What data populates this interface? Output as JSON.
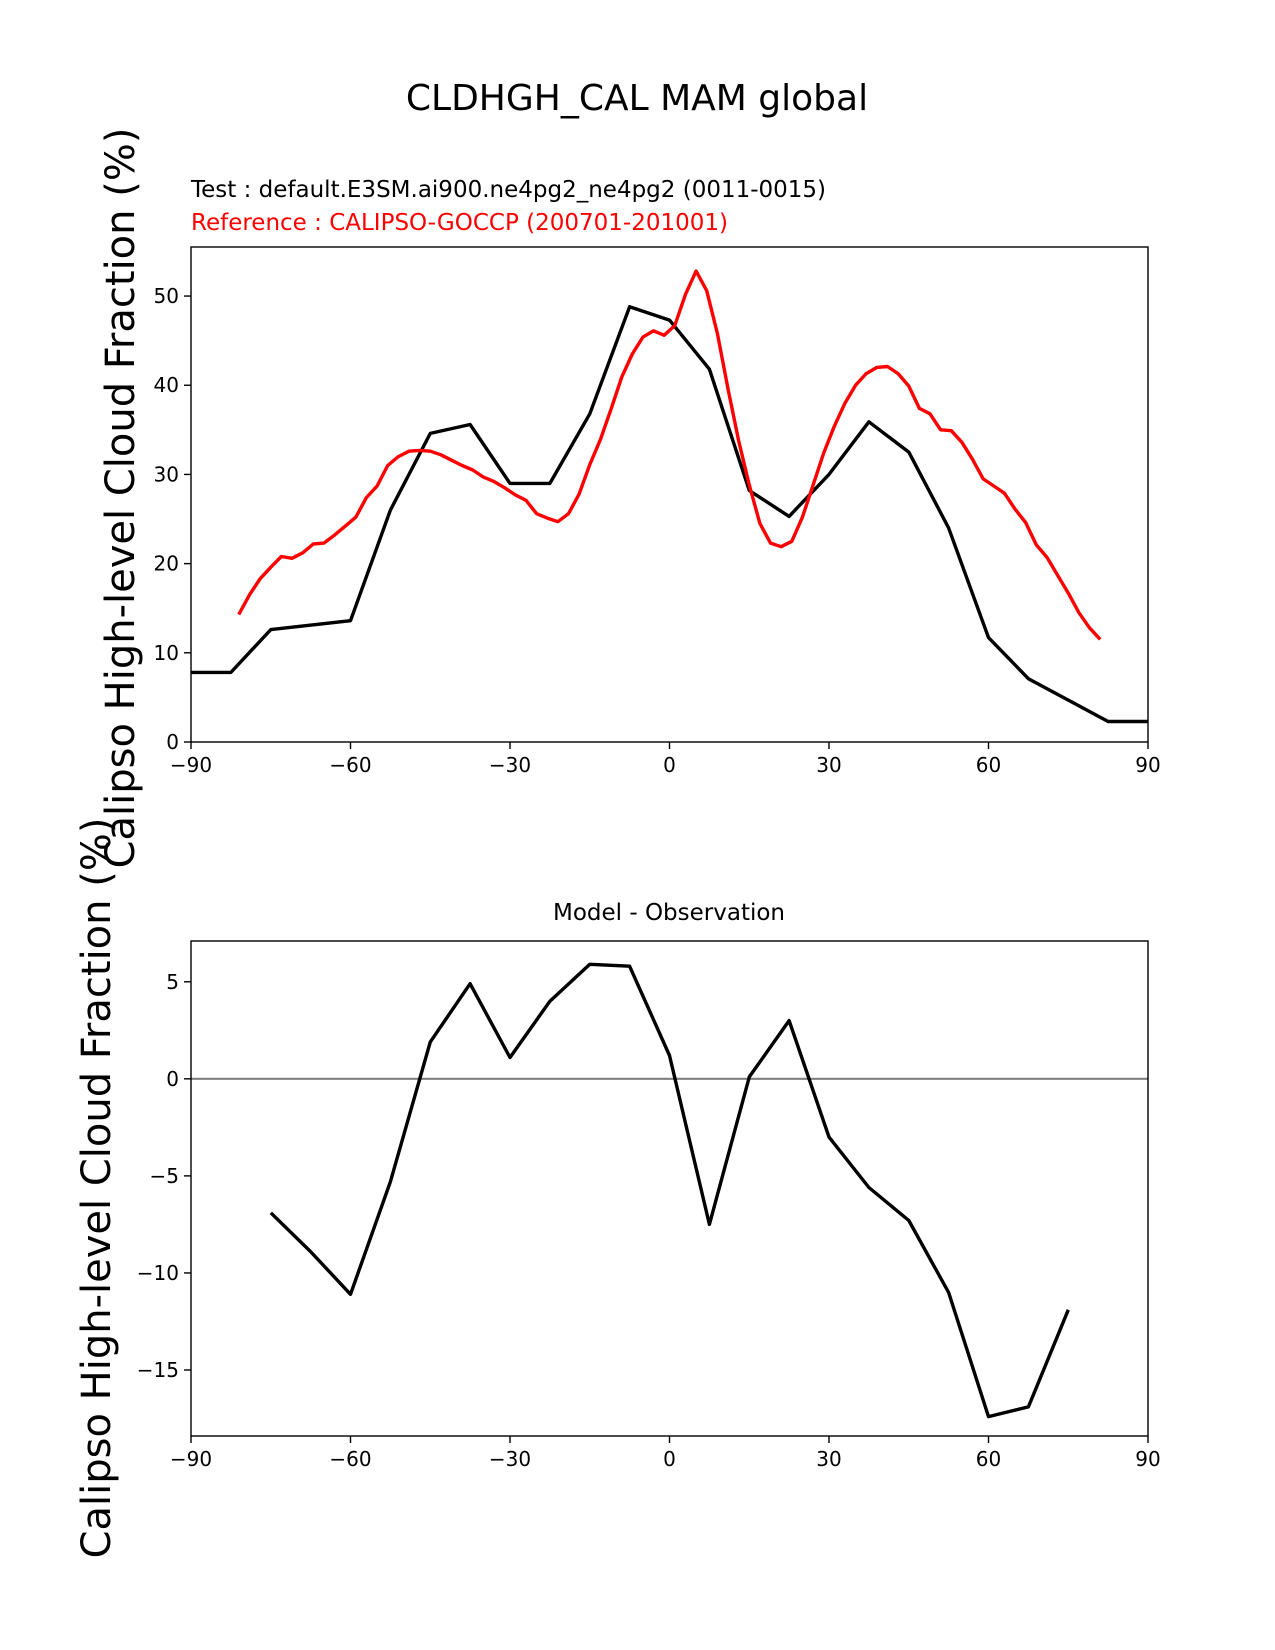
{
  "figure": {
    "title": "CLDHGH_CAL MAM global",
    "test_label": "Test : default.E3SM.ai900.ne4pg2_ne4pg2 (0011-0015)",
    "reference_label": "Reference : CALIPSO-GOCCP (200701-201001)",
    "diff_title": "Model - Observation",
    "ylabel_top": "Calipso High-level Cloud Fraction (%)",
    "ylabel_bottom": "Calipso High-level Cloud Fraction (%)"
  },
  "chart_data": [
    {
      "type": "line",
      "title": "",
      "xlabel": "",
      "ylabel": "Calipso High-level Cloud Fraction (%)",
      "xlim": [
        -90,
        90
      ],
      "ylim": [
        0,
        55.5
      ],
      "xticks": [
        -90,
        -60,
        -30,
        0,
        30,
        60,
        90
      ],
      "yticks": [
        0,
        10,
        20,
        30,
        40,
        50
      ],
      "series": [
        {
          "name": "Test : default.E3SM.ai900.ne4pg2_ne4pg2 (0011-0015)",
          "color": "#000000",
          "x": [
            -90,
            -82.5,
            -75,
            -60,
            -52.5,
            -45,
            -37.5,
            -30,
            -22.5,
            -15,
            -7.5,
            0,
            7.5,
            15,
            22.5,
            30,
            37.5,
            45,
            52.5,
            60,
            67.5,
            75,
            82.5,
            90
          ],
          "y": [
            7.8,
            7.8,
            12.6,
            13.6,
            26.0,
            34.6,
            35.6,
            29.0,
            29.0,
            36.8,
            48.8,
            47.3,
            41.8,
            28.2,
            25.3,
            30.0,
            35.9,
            32.5,
            24.0,
            11.7,
            7.1,
            4.7,
            2.3,
            2.3
          ]
        },
        {
          "name": "Reference : CALIPSO-GOCCP (200701-201001)",
          "color": "#ff0000",
          "x": [
            -81,
            -79,
            -77,
            -75,
            -73,
            -71,
            -69,
            -67,
            -65,
            -63,
            -61,
            -59,
            -57,
            -55,
            -53,
            -51,
            -49,
            -47,
            -45,
            -43,
            -41,
            -39,
            -37,
            -35,
            -33,
            -31,
            -29,
            -27,
            -25,
            -23,
            -21,
            -19,
            -17,
            -15,
            -13,
            -11,
            -9,
            -7,
            -5,
            -3,
            -1,
            1,
            3,
            5,
            7,
            9,
            11,
            13,
            15,
            17,
            19,
            21,
            23,
            25,
            27,
            29,
            31,
            33,
            35,
            37,
            39,
            41,
            43,
            45,
            47,
            49,
            51,
            53,
            55,
            57,
            59,
            61,
            63,
            65,
            67,
            69,
            71,
            73,
            75,
            77,
            79,
            81
          ],
          "y": [
            14.3,
            16.5,
            18.3,
            19.6,
            20.8,
            20.6,
            21.2,
            22.2,
            22.3,
            23.2,
            24.2,
            25.2,
            27.4,
            28.7,
            31.0,
            32.0,
            32.6,
            32.7,
            32.6,
            32.2,
            31.6,
            31.0,
            30.5,
            29.7,
            29.2,
            28.5,
            27.7,
            27.1,
            25.6,
            25.1,
            24.7,
            25.6,
            27.8,
            31.1,
            33.9,
            37.3,
            40.9,
            43.5,
            45.4,
            46.1,
            45.6,
            46.7,
            50.2,
            52.8,
            50.6,
            45.8,
            39.6,
            33.8,
            28.8,
            24.5,
            22.3,
            21.9,
            22.5,
            25.2,
            28.8,
            32.4,
            35.4,
            38.0,
            40.0,
            41.3,
            42.0,
            42.1,
            41.3,
            39.9,
            37.4,
            36.8,
            35.0,
            34.9,
            33.6,
            31.7,
            29.5,
            28.7,
            27.9,
            26.1,
            24.6,
            22.1,
            20.7,
            18.7,
            16.7,
            14.5,
            12.8,
            11.5
          ]
        }
      ]
    },
    {
      "type": "line",
      "title": "Model - Observation",
      "xlabel": "",
      "ylabel": "Calipso High-level Cloud Fraction (%)",
      "xlim": [
        -90,
        90
      ],
      "ylim": [
        -18.4,
        7.1
      ],
      "xticks": [
        -90,
        -60,
        -30,
        0,
        30,
        60,
        90
      ],
      "yticks": [
        -15,
        -10,
        -5,
        0,
        5
      ],
      "zero_line_color": "#808080",
      "series": [
        {
          "name": "",
          "color": "#000000",
          "x": [
            -75,
            -67.5,
            -60,
            -52.5,
            -45,
            -37.5,
            -30,
            -22.5,
            -15,
            -7.5,
            0,
            7.5,
            15,
            22.5,
            30,
            37.5,
            45,
            52.5,
            60,
            67.5,
            75
          ],
          "y": [
            -6.9,
            -8.9,
            -11.1,
            -5.3,
            1.9,
            4.9,
            1.1,
            4.0,
            5.9,
            5.8,
            1.2,
            -7.5,
            0.1,
            3.0,
            -3.0,
            -5.6,
            -7.3,
            -11.0,
            -17.4,
            -16.9,
            -11.9
          ]
        }
      ]
    }
  ]
}
